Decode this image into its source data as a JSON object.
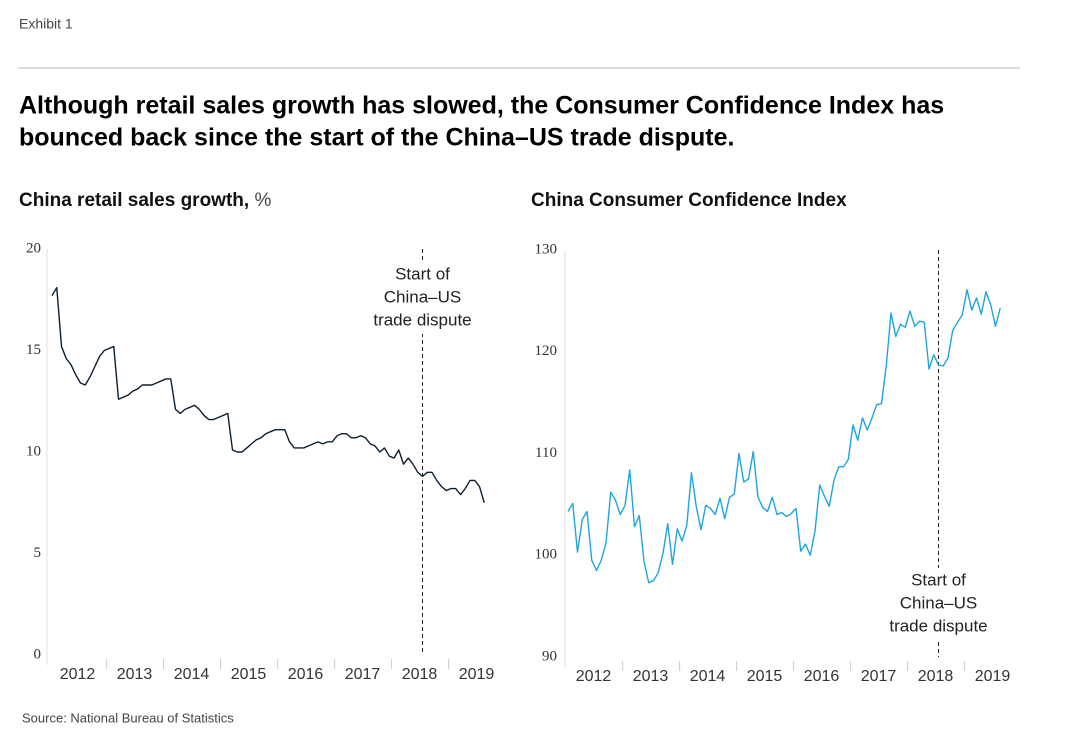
{
  "header": {
    "exhibit": "Exhibit 1",
    "title": [
      "Although retail sales growth has slowed, the Consumer Confidence Index has",
      "bounced back since the start of the China–US trade dispute."
    ],
    "source": "Source: National Bureau of Statistics"
  },
  "chart_data": [
    {
      "type": "line",
      "title": "China retail sales growth,",
      "unit": "%",
      "categories": [
        null,
        null,
        null,
        null,
        null,
        null,
        "2012",
        null,
        null,
        null,
        null,
        null,
        null,
        null,
        null,
        null,
        null,
        null,
        "2013",
        null,
        null,
        null,
        null,
        null,
        null,
        null,
        null,
        null,
        null,
        null,
        "2014",
        null,
        null,
        null,
        null,
        null,
        null,
        null,
        null,
        null,
        null,
        null,
        "2015",
        null,
        null,
        null,
        null,
        null,
        null,
        null,
        null,
        null,
        null,
        null,
        "2016",
        null,
        null,
        null,
        null,
        null,
        null,
        null,
        null,
        null,
        null,
        null,
        "2017",
        null,
        null,
        null,
        null,
        null,
        null,
        null,
        null,
        null,
        null,
        null,
        "2018",
        null,
        null,
        null,
        null,
        null,
        null,
        null,
        null,
        null,
        null,
        null,
        "2019",
        null
      ],
      "series": [
        {
          "name": "China retail sales growth",
          "color": "#0b1f33",
          "values": [
            17.7,
            18.1,
            15.2,
            14.6,
            14.3,
            13.8,
            13.4,
            13.3,
            13.7,
            14.2,
            14.7,
            15.0,
            15.1,
            15.2,
            12.6,
            12.7,
            12.8,
            13.0,
            13.1,
            13.3,
            13.3,
            13.3,
            13.4,
            13.5,
            13.6,
            13.6,
            12.1,
            11.9,
            12.1,
            12.2,
            12.3,
            12.1,
            11.8,
            11.6,
            11.6,
            11.7,
            11.8,
            11.9,
            10.1,
            10.0,
            10.0,
            10.2,
            10.4,
            10.6,
            10.7,
            10.9,
            11.0,
            11.1,
            11.1,
            11.1,
            10.5,
            10.2,
            10.2,
            10.2,
            10.3,
            10.4,
            10.5,
            10.4,
            10.5,
            10.5,
            10.8,
            10.9,
            10.9,
            10.7,
            10.7,
            10.8,
            10.7,
            10.4,
            10.3,
            10.0,
            10.2,
            9.8,
            9.7,
            10.1,
            9.4,
            9.7,
            9.4,
            9.0,
            8.8,
            9.0,
            9.0,
            8.6,
            8.3,
            8.1,
            8.2,
            8.2,
            7.9,
            8.2,
            8.6,
            8.6,
            8.3,
            7.5
          ]
        }
      ],
      "ylim": [
        0,
        20
      ],
      "yticks": [
        0,
        5,
        10,
        15,
        20
      ],
      "events": [
        {
          "at": 78,
          "text": [
            "Start of",
            "China–US",
            "trade dispute"
          ],
          "label_position": "top"
        }
      ]
    },
    {
      "type": "line",
      "title": "China Consumer Confidence Index",
      "categories": [
        null,
        null,
        null,
        null,
        null,
        null,
        "2012",
        null,
        null,
        null,
        null,
        null,
        null,
        null,
        null,
        null,
        null,
        null,
        "2013",
        null,
        null,
        null,
        null,
        null,
        null,
        null,
        null,
        null,
        null,
        null,
        "2014",
        null,
        null,
        null,
        null,
        null,
        null,
        null,
        null,
        null,
        null,
        null,
        "2015",
        null,
        null,
        null,
        null,
        null,
        null,
        null,
        null,
        null,
        null,
        null,
        "2016",
        null,
        null,
        null,
        null,
        null,
        null,
        null,
        null,
        null,
        null,
        null,
        "2017",
        null,
        null,
        null,
        null,
        null,
        null,
        null,
        null,
        null,
        null,
        null,
        "2018",
        null,
        null,
        null,
        null,
        null,
        null,
        null,
        null,
        null,
        null,
        null,
        "2019",
        null
      ],
      "series": [
        {
          "name": "China Consumer Confidence Index",
          "color": "#1ea5e0",
          "values": [
            104.3,
            105.1,
            100.3,
            103.5,
            104.3,
            99.5,
            98.5,
            99.5,
            101.2,
            106.2,
            105.4,
            104.0,
            104.9,
            108.4,
            102.8,
            103.9,
            99.4,
            97.3,
            97.5,
            98.3,
            100.2,
            103.1,
            99.1,
            102.6,
            101.4,
            102.9,
            108.1,
            104.8,
            102.5,
            104.9,
            104.6,
            104.0,
            105.6,
            103.6,
            105.7,
            106.0,
            110.0,
            107.2,
            107.5,
            110.2,
            105.7,
            104.7,
            104.3,
            105.7,
            104.0,
            104.2,
            103.8,
            104.1,
            104.6,
            100.4,
            101.1,
            100.0,
            102.4,
            106.9,
            105.8,
            104.8,
            107.4,
            108.7,
            108.7,
            109.4,
            112.8,
            111.3,
            113.5,
            112.3,
            113.5,
            114.8,
            114.9,
            118.6,
            123.8,
            121.5,
            122.7,
            122.4,
            124.0,
            122.5,
            123.0,
            122.9,
            118.3,
            119.7,
            118.7,
            118.6,
            119.4,
            122.1,
            122.9,
            123.6,
            126.1,
            124.1,
            125.3,
            123.7,
            125.9,
            124.6,
            122.5,
            124.3
          ]
        }
      ],
      "ylim": [
        90,
        130
      ],
      "yticks": [
        90,
        100,
        110,
        120,
        130
      ],
      "events": [
        {
          "at": 78,
          "text": [
            "Start of",
            "China–US",
            "trade dispute"
          ],
          "label_position": "bottom"
        }
      ]
    }
  ]
}
